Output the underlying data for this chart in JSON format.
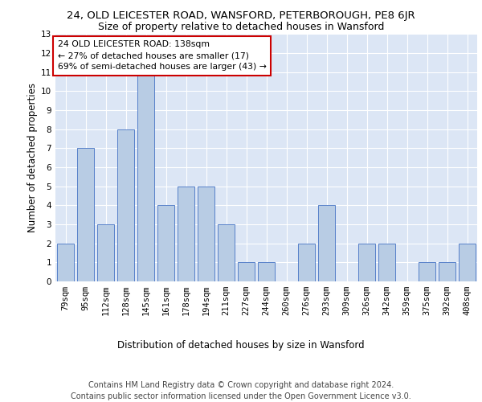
{
  "title": "24, OLD LEICESTER ROAD, WANSFORD, PETERBOROUGH, PE8 6JR",
  "subtitle": "Size of property relative to detached houses in Wansford",
  "xlabel": "Distribution of detached houses by size in Wansford",
  "ylabel": "Number of detached properties",
  "categories": [
    "79sqm",
    "95sqm",
    "112sqm",
    "128sqm",
    "145sqm",
    "161sqm",
    "178sqm",
    "194sqm",
    "211sqm",
    "227sqm",
    "244sqm",
    "260sqm",
    "276sqm",
    "293sqm",
    "309sqm",
    "326sqm",
    "342sqm",
    "359sqm",
    "375sqm",
    "392sqm",
    "408sqm"
  ],
  "values": [
    2,
    7,
    3,
    8,
    11,
    4,
    5,
    5,
    3,
    1,
    1,
    0,
    2,
    4,
    0,
    2,
    2,
    0,
    1,
    1,
    2
  ],
  "bar_color": "#b8cce4",
  "bar_edge_color": "#4472c4",
  "ylim": [
    0,
    13
  ],
  "yticks": [
    0,
    1,
    2,
    3,
    4,
    5,
    6,
    7,
    8,
    9,
    10,
    11,
    12,
    13
  ],
  "annotation_text": "24 OLD LEICESTER ROAD: 138sqm\n← 27% of detached houses are smaller (17)\n69% of semi-detached houses are larger (43) →",
  "annotation_border_color": "#cc0000",
  "footer_text": "Contains HM Land Registry data © Crown copyright and database right 2024.\nContains public sector information licensed under the Open Government Licence v3.0.",
  "plot_bg_color": "#dce6f5",
  "grid_color": "#ffffff",
  "title_fontsize": 9.5,
  "subtitle_fontsize": 9,
  "axis_label_fontsize": 8.5,
  "tick_fontsize": 7.5,
  "footer_fontsize": 7,
  "ann_fontsize": 7.8
}
